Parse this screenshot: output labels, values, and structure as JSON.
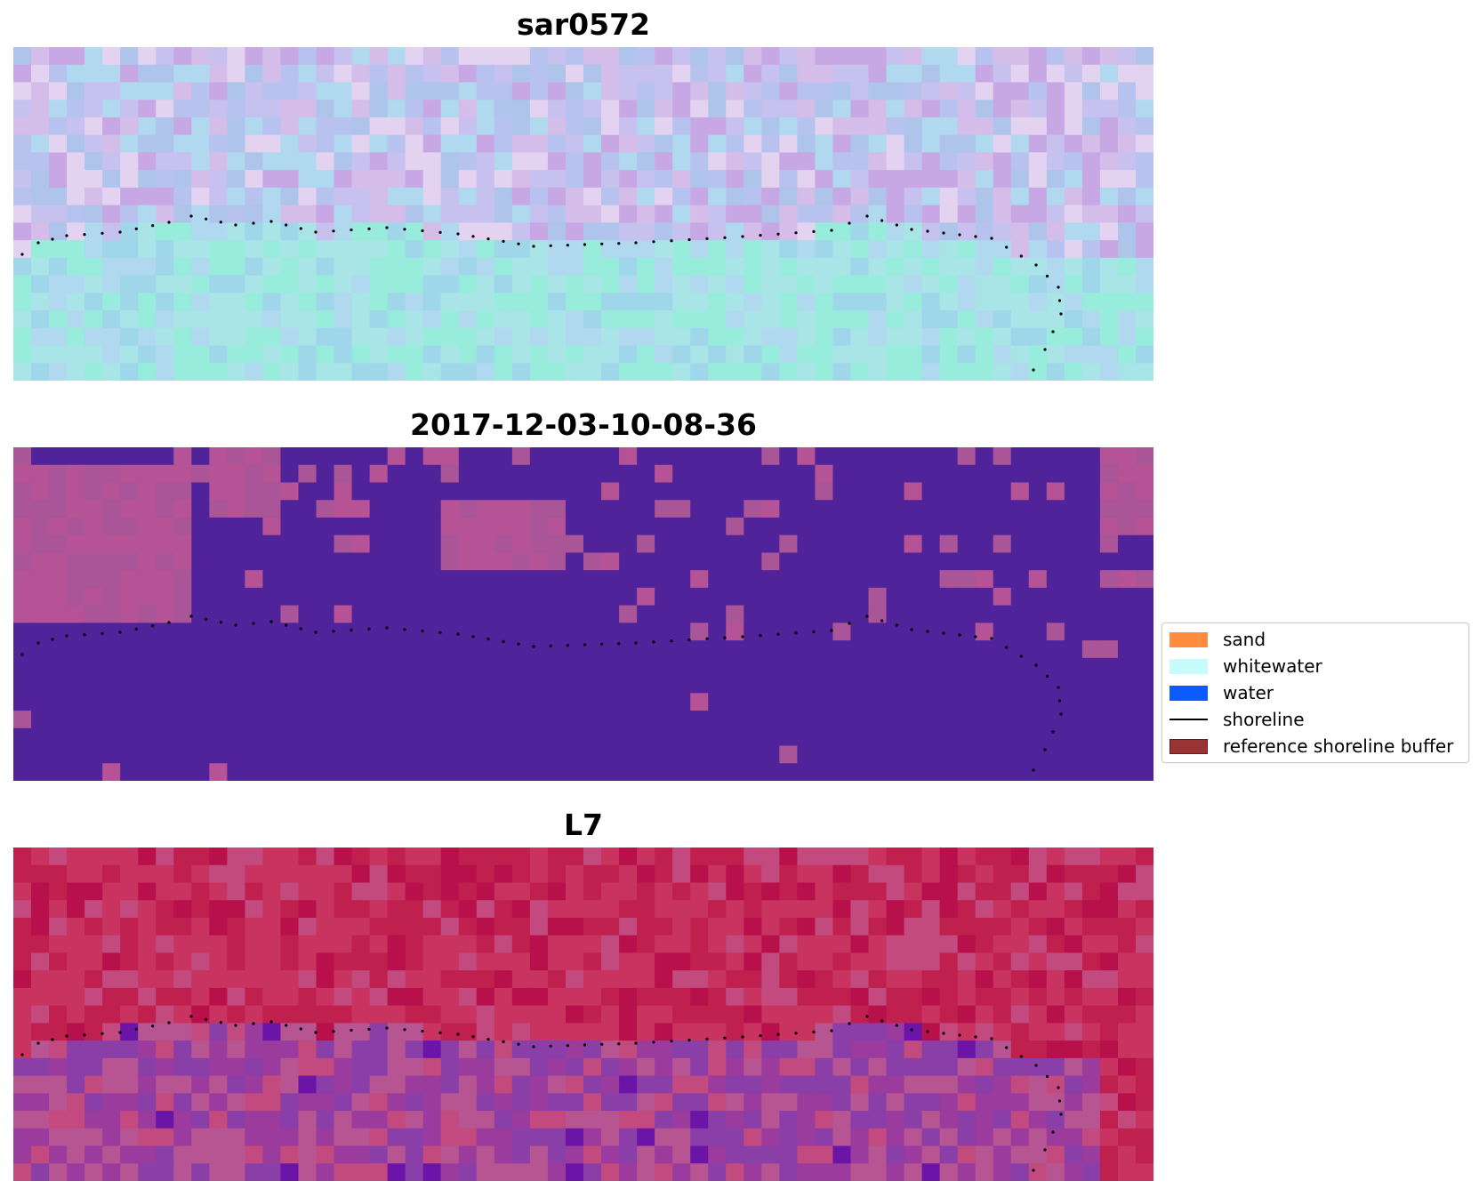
{
  "figure": {
    "grid_cols": 64,
    "grid_rows": 19
  },
  "panels": [
    {
      "title": "sar0572",
      "kind": "image",
      "palette": [
        "#aec4ea",
        "#b8c2ee",
        "#c7c1ef",
        "#d4bde9",
        "#c8a8e4",
        "#a9e4e6",
        "#98ecdc",
        "#b0d8ee",
        "#e3d3f0",
        "#9fd6ea"
      ]
    },
    {
      "title": "2017-12-03-10-08-36",
      "kind": "classification",
      "palette": [
        "#51239a",
        "#b55396",
        "#a95597"
      ]
    },
    {
      "title": "L7",
      "kind": "image",
      "palette": [
        "#c0204e",
        "#c8345f",
        "#b8104a",
        "#c24a7e",
        "#9b3b9e",
        "#8a3ea8",
        "#b65591",
        "#6a15a8"
      ]
    }
  ],
  "legend": {
    "items": [
      {
        "label": "sand",
        "swatch": "patch",
        "color": "#ff8c3f"
      },
      {
        "label": "whitewater",
        "swatch": "patch",
        "color": "#c8fbfb"
      },
      {
        "label": "water",
        "swatch": "patch",
        "color": "#0a5cff"
      },
      {
        "label": "shoreline",
        "swatch": "line",
        "color": "#000000"
      },
      {
        "label": "reference shoreline buffer",
        "swatch": "patch",
        "color": "#9a3333"
      }
    ]
  }
}
